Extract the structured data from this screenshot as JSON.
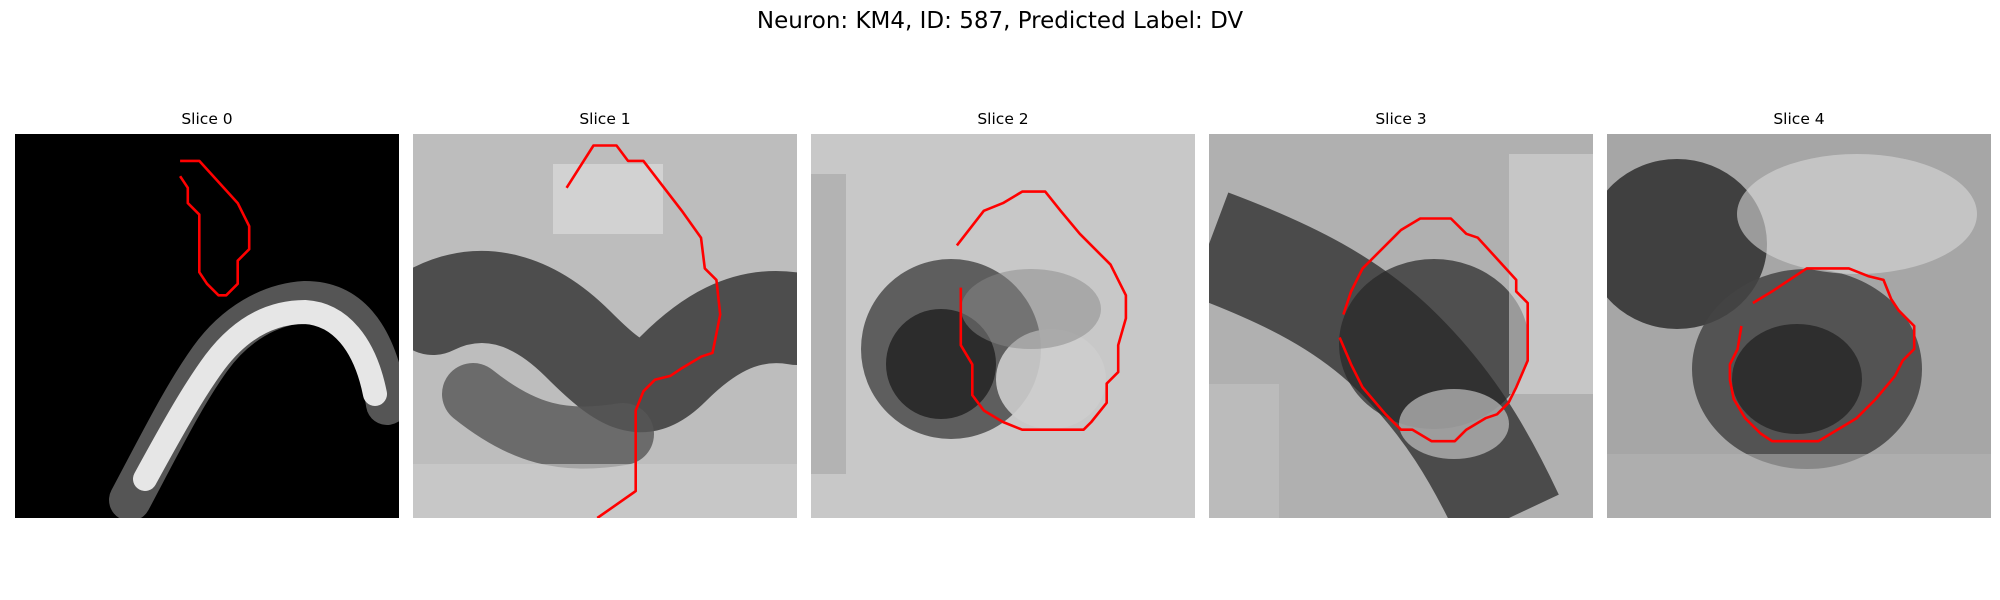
{
  "figure": {
    "title": "Neuron: KM4, ID: 587, Predicted Label: DV"
  },
  "panels": [
    {
      "title": "Slice 0",
      "background": "#000000",
      "contour_color": "#ff0000",
      "contour": [
        [
          0.43,
          0.07
        ],
        [
          0.48,
          0.07
        ],
        [
          0.58,
          0.18
        ],
        [
          0.61,
          0.24
        ],
        [
          0.61,
          0.3
        ],
        [
          0.58,
          0.33
        ],
        [
          0.58,
          0.39
        ],
        [
          0.55,
          0.42
        ],
        [
          0.53,
          0.42
        ],
        [
          0.5,
          0.39
        ],
        [
          0.48,
          0.36
        ],
        [
          0.48,
          0.21
        ],
        [
          0.45,
          0.18
        ],
        [
          0.45,
          0.14
        ],
        [
          0.43,
          0.11
        ]
      ]
    },
    {
      "title": "Slice 1",
      "background": "#bdbdbd",
      "contour_color": "#ff0000",
      "contour": [
        [
          0.4,
          0.14
        ],
        [
          0.47,
          0.03
        ],
        [
          0.53,
          0.03
        ],
        [
          0.56,
          0.07
        ],
        [
          0.6,
          0.07
        ],
        [
          0.7,
          0.2
        ],
        [
          0.75,
          0.27
        ],
        [
          0.76,
          0.35
        ],
        [
          0.79,
          0.38
        ],
        [
          0.8,
          0.47
        ],
        [
          0.79,
          0.52
        ],
        [
          0.78,
          0.57
        ],
        [
          0.75,
          0.58
        ],
        [
          0.7,
          0.61
        ],
        [
          0.67,
          0.63
        ],
        [
          0.63,
          0.64
        ],
        [
          0.6,
          0.67
        ],
        [
          0.58,
          0.72
        ],
        [
          0.58,
          0.93
        ],
        [
          0.48,
          1.0
        ]
      ]
    },
    {
      "title": "Slice 2",
      "background": "#c8c8c8",
      "contour_color": "#ff0000",
      "contour": [
        [
          0.38,
          0.29
        ],
        [
          0.45,
          0.2
        ],
        [
          0.5,
          0.18
        ],
        [
          0.55,
          0.15
        ],
        [
          0.61,
          0.15
        ],
        [
          0.65,
          0.2
        ],
        [
          0.7,
          0.26
        ],
        [
          0.78,
          0.34
        ],
        [
          0.82,
          0.42
        ],
        [
          0.82,
          0.48
        ],
        [
          0.8,
          0.55
        ],
        [
          0.8,
          0.62
        ],
        [
          0.77,
          0.65
        ],
        [
          0.77,
          0.7
        ],
        [
          0.73,
          0.75
        ],
        [
          0.71,
          0.77
        ],
        [
          0.55,
          0.77
        ],
        [
          0.5,
          0.75
        ],
        [
          0.45,
          0.72
        ],
        [
          0.42,
          0.68
        ],
        [
          0.42,
          0.6
        ],
        [
          0.39,
          0.55
        ],
        [
          0.39,
          0.4
        ]
      ]
    },
    {
      "title": "Slice 3",
      "background": "#b0b0b0",
      "contour_color": "#ff0000",
      "contour": [
        [
          0.35,
          0.47
        ],
        [
          0.37,
          0.41
        ],
        [
          0.38,
          0.39
        ],
        [
          0.4,
          0.35
        ],
        [
          0.5,
          0.25
        ],
        [
          0.55,
          0.22
        ],
        [
          0.63,
          0.22
        ],
        [
          0.67,
          0.26
        ],
        [
          0.7,
          0.27
        ],
        [
          0.8,
          0.38
        ],
        [
          0.8,
          0.41
        ],
        [
          0.83,
          0.44
        ],
        [
          0.83,
          0.59
        ],
        [
          0.8,
          0.66
        ],
        [
          0.78,
          0.7
        ],
        [
          0.75,
          0.73
        ],
        [
          0.72,
          0.74
        ],
        [
          0.67,
          0.77
        ],
        [
          0.64,
          0.8
        ],
        [
          0.58,
          0.8
        ],
        [
          0.53,
          0.77
        ],
        [
          0.5,
          0.77
        ],
        [
          0.46,
          0.73
        ],
        [
          0.4,
          0.66
        ],
        [
          0.37,
          0.6
        ],
        [
          0.34,
          0.53
        ]
      ]
    },
    {
      "title": "Slice 4",
      "background": "#a6a6a6",
      "contour_color": "#ff0000",
      "contour": [
        [
          0.38,
          0.44
        ],
        [
          0.43,
          0.41
        ],
        [
          0.52,
          0.35
        ],
        [
          0.57,
          0.35
        ],
        [
          0.63,
          0.35
        ],
        [
          0.68,
          0.37
        ],
        [
          0.72,
          0.38
        ],
        [
          0.74,
          0.43
        ],
        [
          0.76,
          0.46
        ],
        [
          0.8,
          0.5
        ],
        [
          0.8,
          0.56
        ],
        [
          0.77,
          0.59
        ],
        [
          0.75,
          0.63
        ],
        [
          0.7,
          0.69
        ],
        [
          0.65,
          0.74
        ],
        [
          0.6,
          0.77
        ],
        [
          0.55,
          0.8
        ],
        [
          0.43,
          0.8
        ],
        [
          0.4,
          0.78
        ],
        [
          0.36,
          0.74
        ],
        [
          0.33,
          0.69
        ],
        [
          0.32,
          0.64
        ],
        [
          0.32,
          0.6
        ],
        [
          0.34,
          0.56
        ],
        [
          0.35,
          0.5
        ]
      ]
    }
  ]
}
